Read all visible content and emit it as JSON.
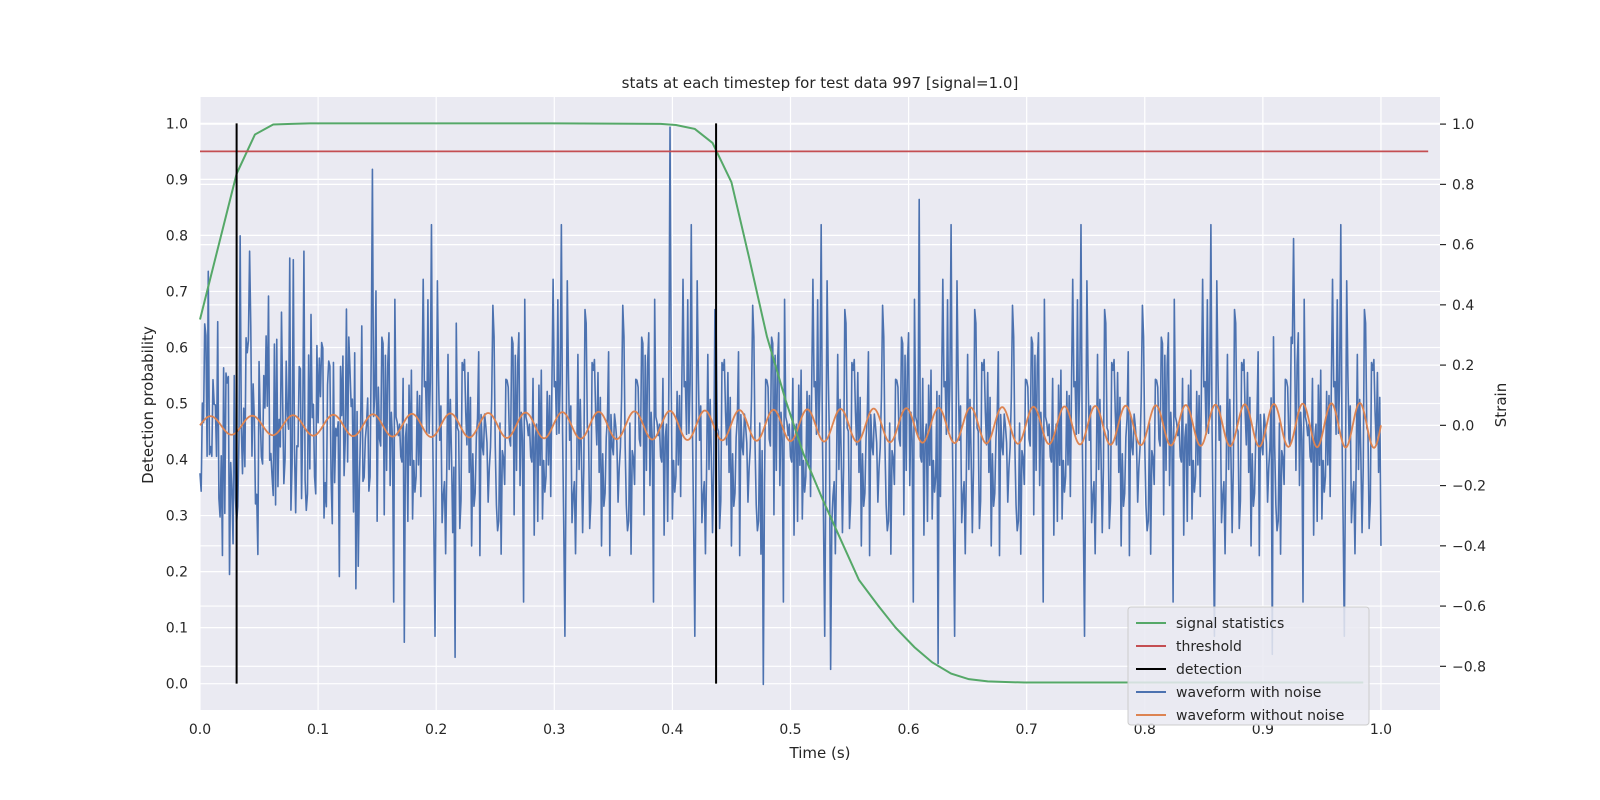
{
  "chart_data": {
    "type": "line",
    "title": "stats at each timestep for test data 997 [signal=1.0]",
    "xlabel": "Time (s)",
    "ylabel_left": "Detection probability",
    "ylabel_right": "Strain",
    "xlim": [
      0.0,
      1.05
    ],
    "ylim_left": [
      -0.047,
      1.047
    ],
    "ylim_right": [
      -0.945,
      1.09
    ],
    "xticks": [
      "0.0",
      "0.1",
      "0.2",
      "0.3",
      "0.4",
      "0.5",
      "0.6",
      "0.7",
      "0.8",
      "0.9",
      "1.0"
    ],
    "yticks_left": [
      "0.0",
      "0.1",
      "0.2",
      "0.3",
      "0.4",
      "0.5",
      "0.6",
      "0.7",
      "0.8",
      "0.9",
      "1.0"
    ],
    "yticks_right": [
      "−0.8",
      "−0.6",
      "−0.4",
      "−0.2",
      "0.0",
      "0.2",
      "0.4",
      "0.6",
      "0.8",
      "1.0"
    ],
    "grid": true,
    "legend_position": "lower-right",
    "series": [
      {
        "name": "signal statistics",
        "axis": "left",
        "color": "#55a868",
        "x": [
          0.0,
          0.0155,
          0.031,
          0.0465,
          0.062,
          0.0775,
          0.093,
          0.2,
          0.3,
          0.39,
          0.403,
          0.419,
          0.434,
          0.45,
          0.465,
          0.48,
          0.496,
          0.511,
          0.527,
          0.543,
          0.558,
          0.574,
          0.589,
          0.605,
          0.62,
          0.636,
          0.651,
          0.667,
          0.682,
          0.698,
          0.8,
          0.9,
          0.95,
          0.985
        ],
        "y": [
          0.65,
          0.78,
          0.91,
          0.98,
          0.998,
          0.999,
          1.0,
          1.0,
          1.0,
          0.999,
          0.997,
          0.99,
          0.965,
          0.895,
          0.76,
          0.62,
          0.505,
          0.41,
          0.33,
          0.255,
          0.185,
          0.14,
          0.1,
          0.065,
          0.038,
          0.018,
          0.008,
          0.004,
          0.003,
          0.002,
          0.002,
          0.002,
          0.002,
          0.002
        ]
      },
      {
        "name": "threshold",
        "axis": "left",
        "color": "#c44e52",
        "x": [
          0.0,
          1.04
        ],
        "y": [
          0.95,
          0.95
        ]
      },
      {
        "name": "detection",
        "axis": "left",
        "color": "#000000",
        "segments": [
          {
            "x": 0.031,
            "y0": 0.0,
            "y1": 1.0
          },
          {
            "x": 0.437,
            "y0": 0.0,
            "y1": 1.0
          }
        ]
      },
      {
        "name": "waveform with noise",
        "axis": "right",
        "color": "#4c72b0",
        "x_start": 0.0,
        "x_end": 1.0,
        "peaks": [
          {
            "x": 0.146,
            "y": 0.85
          },
          {
            "x": 0.398,
            "y": 0.99
          },
          {
            "x": 0.609,
            "y": 0.75
          },
          {
            "x": 0.477,
            "y": -0.86
          },
          {
            "x": 0.534,
            "y": -0.81
          },
          {
            "x": 0.625,
            "y": -0.79
          },
          {
            "x": 0.216,
            "y": -0.77
          },
          {
            "x": 0.173,
            "y": -0.72
          },
          {
            "x": 0.908,
            "y": -0.76
          },
          {
            "x": 0.926,
            "y": 0.62
          },
          {
            "x": 0.079,
            "y": 0.55
          }
        ]
      },
      {
        "name": "waveform without noise",
        "axis": "right",
        "color": "#dd8452",
        "x_start": 0.0,
        "x_end": 1.0,
        "amplitude_start": 0.03,
        "amplitude_end": 0.075,
        "cycles": 35
      }
    ]
  }
}
